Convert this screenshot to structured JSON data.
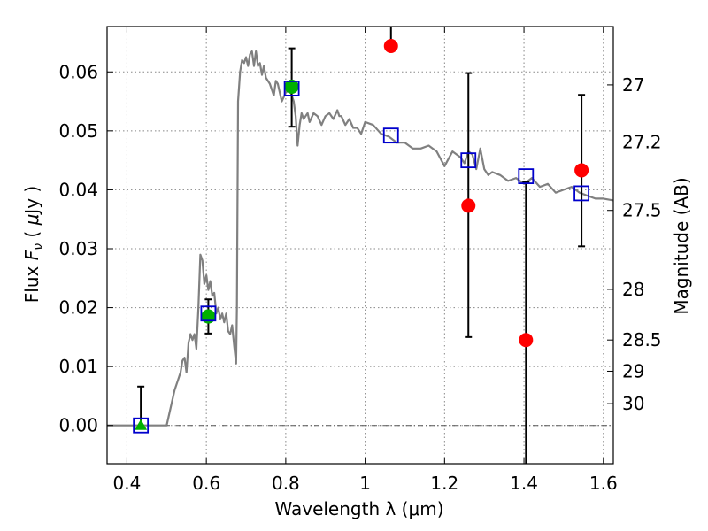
{
  "chart_data": {
    "type": "scatter",
    "xlabel": "Wavelength  λ (μm)",
    "ylabel_text": "Flux",
    "ylabel_symbol": "F",
    "ylabel_subscript": "ν",
    "ylabel_unit_open": "(",
    "ylabel_unit_mu": "μ",
    "ylabel_unit_rest": "Jy )",
    "y2label": "Magnitude (AB)",
    "xlim": [
      0.35,
      1.625
    ],
    "ylim": [
      -0.0065,
      0.0677
    ],
    "grid": true,
    "xticks": [
      0.4,
      0.6,
      0.8,
      1.0,
      1.2,
      1.4,
      1.6
    ],
    "xtick_labels": [
      "0.4",
      "0.6",
      "0.8",
      "1",
      "1.2",
      "1.4",
      "1.6"
    ],
    "yticks": [
      0.0,
      0.01,
      0.02,
      0.03,
      0.04,
      0.05,
      0.06
    ],
    "ytick_labels": [
      "0.00",
      "0.01",
      "0.02",
      "0.03",
      "0.04",
      "0.05",
      "0.06"
    ],
    "y2ticks": [
      {
        "label": "27",
        "flux": 0.0578
      },
      {
        "label": "27.2",
        "flux": 0.0481
      },
      {
        "label": "27.5",
        "flux": 0.0365
      },
      {
        "label": "28",
        "flux": 0.0231
      },
      {
        "label": "28.5",
        "flux": 0.0145
      },
      {
        "label": "29",
        "flux": 0.0092
      },
      {
        "label": "30",
        "flux": 0.0037
      }
    ],
    "zero_line": 0.0,
    "colors": {
      "model": "#808080",
      "measured": "#ff0000",
      "measured_alt": "#00b000",
      "synthetic": "#0000cc",
      "errorbar": "#000000",
      "grid": "#888888"
    },
    "model_spectrum": {
      "x": [
        0.35,
        0.5,
        0.52,
        0.535,
        0.54,
        0.545,
        0.55,
        0.555,
        0.56,
        0.565,
        0.57,
        0.575,
        0.58,
        0.585,
        0.59,
        0.595,
        0.6,
        0.605,
        0.61,
        0.615,
        0.62,
        0.625,
        0.63,
        0.635,
        0.64,
        0.645,
        0.65,
        0.655,
        0.66,
        0.665,
        0.67,
        0.675,
        0.677,
        0.68,
        0.685,
        0.69,
        0.695,
        0.7,
        0.705,
        0.71,
        0.715,
        0.72,
        0.725,
        0.73,
        0.735,
        0.74,
        0.745,
        0.75,
        0.76,
        0.77,
        0.775,
        0.78,
        0.79,
        0.8,
        0.81,
        0.82,
        0.825,
        0.83,
        0.835,
        0.84,
        0.845,
        0.85,
        0.855,
        0.86,
        0.87,
        0.88,
        0.89,
        0.9,
        0.91,
        0.92,
        0.93,
        0.935,
        0.94,
        0.95,
        0.96,
        0.97,
        0.98,
        0.99,
        1.0,
        1.02,
        1.04,
        1.06,
        1.08,
        1.1,
        1.12,
        1.14,
        1.16,
        1.18,
        1.2,
        1.22,
        1.24,
        1.25,
        1.26,
        1.27,
        1.28,
        1.29,
        1.3,
        1.31,
        1.32,
        1.34,
        1.36,
        1.38,
        1.4,
        1.42,
        1.44,
        1.46,
        1.48,
        1.5,
        1.52,
        1.54,
        1.56,
        1.58,
        1.6,
        1.625
      ],
      "y": [
        0.0,
        0.0,
        0.006,
        0.009,
        0.011,
        0.0115,
        0.009,
        0.014,
        0.0155,
        0.0145,
        0.0155,
        0.013,
        0.02,
        0.029,
        0.028,
        0.024,
        0.0255,
        0.023,
        0.0245,
        0.022,
        0.0225,
        0.019,
        0.02,
        0.018,
        0.019,
        0.0175,
        0.019,
        0.016,
        0.0155,
        0.017,
        0.0135,
        0.0105,
        0.02,
        0.055,
        0.06,
        0.062,
        0.0615,
        0.0625,
        0.061,
        0.063,
        0.0635,
        0.061,
        0.0635,
        0.061,
        0.0615,
        0.0595,
        0.061,
        0.059,
        0.058,
        0.056,
        0.0585,
        0.058,
        0.055,
        0.0565,
        0.057,
        0.055,
        0.0525,
        0.0475,
        0.051,
        0.053,
        0.052,
        0.0525,
        0.053,
        0.0515,
        0.053,
        0.0525,
        0.051,
        0.0525,
        0.053,
        0.052,
        0.0535,
        0.0525,
        0.0525,
        0.051,
        0.052,
        0.0505,
        0.0505,
        0.0495,
        0.0515,
        0.051,
        0.0495,
        0.049,
        0.048,
        0.048,
        0.047,
        0.047,
        0.0475,
        0.0465,
        0.044,
        0.0465,
        0.0455,
        0.0445,
        0.0465,
        0.046,
        0.0435,
        0.047,
        0.0435,
        0.0425,
        0.043,
        0.0425,
        0.0415,
        0.042,
        0.041,
        0.042,
        0.0405,
        0.041,
        0.0395,
        0.04,
        0.0405,
        0.0395,
        0.039,
        0.0385,
        0.0385,
        0.0382
      ]
    },
    "series": [
      {
        "marker": "circle",
        "color": "red",
        "x": [
          1.065,
          1.26,
          1.405,
          1.545
        ],
        "y": [
          0.0644,
          0.0373,
          0.0145,
          0.0433
        ],
        "err_low": [
          0.0,
          0.0223,
          0.0265,
          0.0129
        ],
        "err_high": [
          0.05,
          0.0225,
          0.0268,
          0.0128
        ]
      },
      {
        "marker": "circle",
        "color": "green",
        "x": [
          0.605,
          0.815
        ],
        "y": [
          0.0185,
          0.0575
        ],
        "err_low": [
          0.0029,
          0.0068
        ],
        "err_high": [
          0.0029,
          0.0065
        ]
      },
      {
        "marker": "triangle",
        "color": "green",
        "x": [
          0.435
        ],
        "y": [
          0.0
        ],
        "err_low": [
          0.0
        ],
        "err_high": [
          0.0066
        ]
      },
      {
        "marker": "open-square",
        "color": "blue",
        "x": [
          0.435,
          0.605,
          0.815,
          1.065,
          1.26,
          1.405,
          1.545
        ],
        "y": [
          0.0,
          0.019,
          0.0572,
          0.0492,
          0.045,
          0.0423,
          0.0394
        ]
      }
    ]
  }
}
